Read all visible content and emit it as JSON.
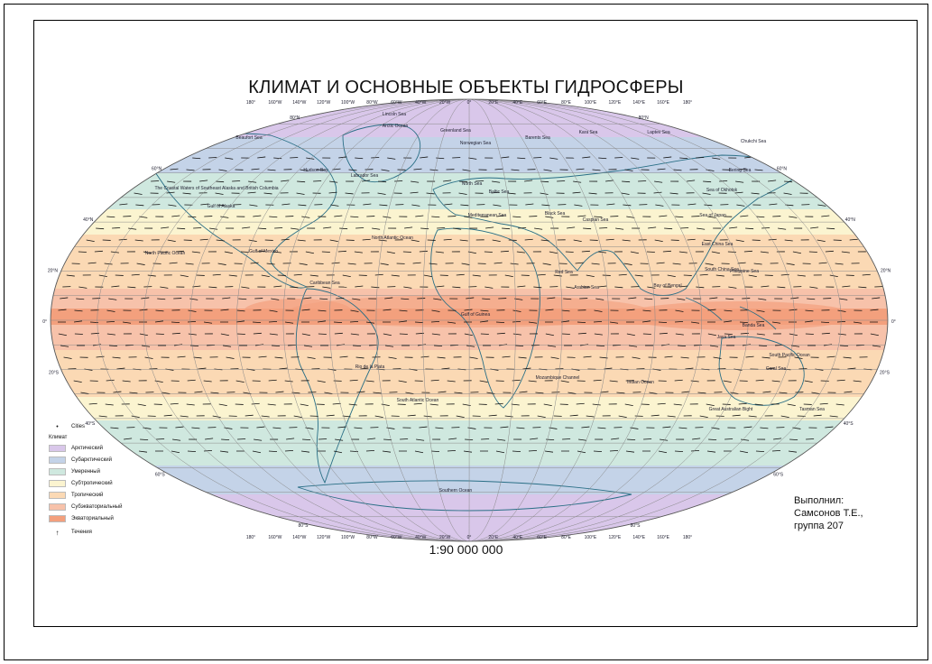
{
  "title": "КЛИМАТ И ОСНОВНЫЕ ОБЪЕКТЫ ГИДРОСФЕРЫ",
  "scale": "1:90 000 000",
  "author": [
    "Выполнил:",
    "Самсонов Т.Е.,",
    "группа 207"
  ],
  "legend": {
    "cities": "Cities",
    "heading": "Климат",
    "items": [
      {
        "label": "Арктический",
        "color": "#d9c7ea"
      },
      {
        "label": "Субарктический",
        "color": "#c4d3e8"
      },
      {
        "label": "Умеренный",
        "color": "#cfe8df"
      },
      {
        "label": "Субтропический",
        "color": "#fbf4d0"
      },
      {
        "label": "Тропический",
        "color": "#fbd9b4"
      },
      {
        "label": "Субэкваториальный",
        "color": "#f7c2aa"
      },
      {
        "label": "Экваториальный",
        "color": "#f3a07d"
      }
    ],
    "currents": "Течения"
  },
  "graticule": {
    "top_lon_labels": [
      "180°",
      "160°W",
      "140°W",
      "120°W",
      "100°W",
      "80°W",
      "60°W",
      "40°W",
      "20°W",
      "0°",
      "20°E",
      "40°E",
      "60°E",
      "80°E",
      "100°E",
      "120°E",
      "140°E",
      "160°E",
      "180°"
    ],
    "lat_labels_left": [
      "80°N",
      "60°N",
      "40°N",
      "20°N",
      "0°",
      "20°S",
      "40°S",
      "60°S",
      "80°S"
    ],
    "lat_labels_right": [
      "80°N",
      "60°N",
      "40°N",
      "20°N",
      "0°",
      "20°S",
      "40°S",
      "60°S",
      "80°S"
    ]
  },
  "water_labels": [
    "Lincoln Sea",
    "Beaufort Sea",
    "Arctic Ocean",
    "Greenland Sea",
    "Barents Sea",
    "Kara Sea",
    "Laptev Sea",
    "Chukchi Sea",
    "Norwegian Sea",
    "Bering Sea",
    "Labrador Sea",
    "Hudson Bay",
    "North Sea",
    "Baltic Sea",
    "Sea of Okhotsk",
    "The Coastal Waters of Southeast Alaska and British Columbia",
    "Gulf of Alaska",
    "Sea of Japan",
    "Mediterranean Sea",
    "Black Sea",
    "Caspian Sea",
    "North Atlantic Ocean",
    "Gulf of Mexico",
    "North Pacific Ocean",
    "Philippine Sea",
    "East China Sea",
    "Red Sea",
    "Arabian Sea",
    "Bay of Bengal",
    "South China Sea",
    "Gulf of Guinea",
    "Caribbean Sea",
    "Indian Ocean",
    "Mozambique Channel",
    "South Atlantic Ocean",
    "South Pacific Ocean",
    "Great Australian Bight",
    "Tasman Sea",
    "Coral Sea",
    "Southern Ocean",
    "Java Sea",
    "Banda Sea",
    "Rio de la Plata"
  ]
}
